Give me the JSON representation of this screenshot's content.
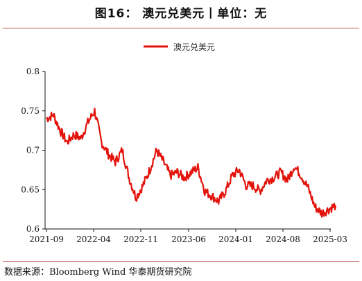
{
  "title": "图16：  澳元兑美元丨单位：无",
  "source": "数据来源：Bloomberg Wind 华泰期货研究院",
  "chart_data": {
    "type": "line",
    "title": "图16：  澳元兑美元丨单位：无",
    "xlabel": "",
    "ylabel": "",
    "ylim": [
      0.6,
      0.8
    ],
    "yticks": [
      "0.8",
      "0.75",
      "0.7",
      "0.65",
      "0.6"
    ],
    "xticks": [
      "2021-09",
      "2022-04",
      "2022-11",
      "2023-06",
      "2024-01",
      "2024-08",
      "2025-03"
    ],
    "legend_position": "top-center",
    "grid": false,
    "color": "#e3120b",
    "series": [
      {
        "name": "澳元兑美元",
        "x": [
          "2021-09",
          "2021-10",
          "2021-11",
          "2021-12",
          "2022-01",
          "2022-02",
          "2022-03",
          "2022-04",
          "2022-05",
          "2022-06",
          "2022-07",
          "2022-08",
          "2022-09",
          "2022-10",
          "2022-11",
          "2022-12",
          "2023-01",
          "2023-02",
          "2023-03",
          "2023-04",
          "2023-05",
          "2023-06",
          "2023-07",
          "2023-08",
          "2023-09",
          "2023-10",
          "2023-11",
          "2023-12",
          "2024-01",
          "2024-02",
          "2024-03",
          "2024-04",
          "2024-05",
          "2024-06",
          "2024-07",
          "2024-08",
          "2024-09",
          "2024-10",
          "2024-11",
          "2024-12",
          "2025-01",
          "2025-02",
          "2025-03"
        ],
        "values": [
          0.74,
          0.745,
          0.725,
          0.71,
          0.72,
          0.715,
          0.735,
          0.75,
          0.71,
          0.695,
          0.685,
          0.7,
          0.665,
          0.64,
          0.655,
          0.675,
          0.7,
          0.685,
          0.668,
          0.672,
          0.665,
          0.672,
          0.678,
          0.648,
          0.642,
          0.635,
          0.648,
          0.668,
          0.675,
          0.655,
          0.655,
          0.648,
          0.662,
          0.665,
          0.672,
          0.662,
          0.68,
          0.668,
          0.652,
          0.628,
          0.62,
          0.625,
          0.63
        ]
      }
    ]
  }
}
